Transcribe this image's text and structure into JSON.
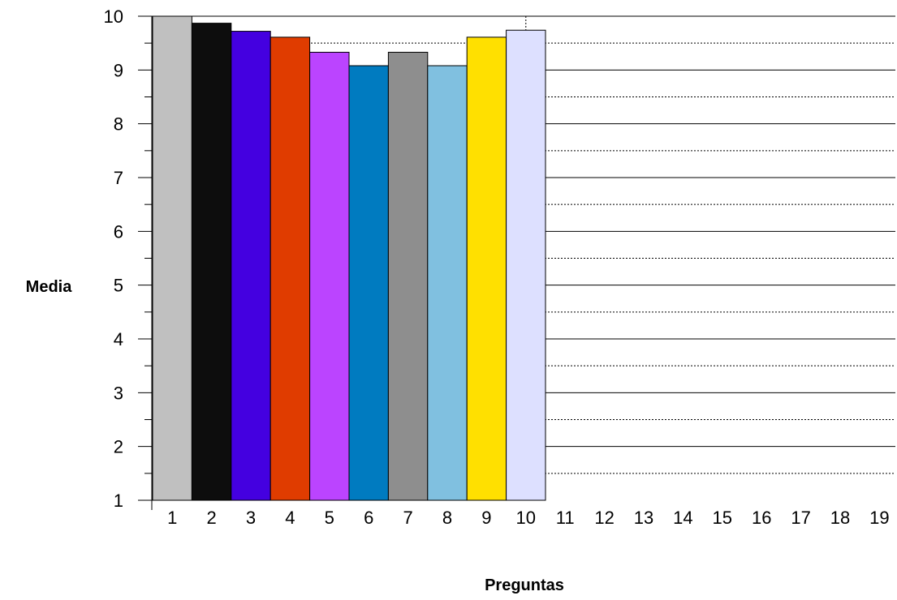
{
  "chart_data": {
    "type": "bar",
    "title": "",
    "xlabel": "Preguntas",
    "ylabel": "Media",
    "categories": [
      "1",
      "2",
      "3",
      "4",
      "5",
      "6",
      "7",
      "8",
      "9",
      "10",
      "11",
      "12",
      "13",
      "14",
      "15",
      "16",
      "17",
      "18",
      "19"
    ],
    "values": [
      10.0,
      9.87,
      9.72,
      9.61,
      9.33,
      9.08,
      9.33,
      9.08,
      9.61,
      9.74,
      null,
      null,
      null,
      null,
      null,
      null,
      null,
      null,
      null
    ],
    "colors": [
      "#c0c0c0",
      "#0d0d0d",
      "#4400e0",
      "#e03c00",
      "#bb44ff",
      "#007bc0",
      "#8e8e8e",
      "#80c0e0",
      "#ffe000",
      "#dde0ff"
    ],
    "ylim": [
      1,
      10
    ],
    "y_ticks": [
      1,
      2,
      3,
      4,
      5,
      6,
      7,
      8,
      9,
      10
    ],
    "grid": "major solid, minor dashed"
  }
}
